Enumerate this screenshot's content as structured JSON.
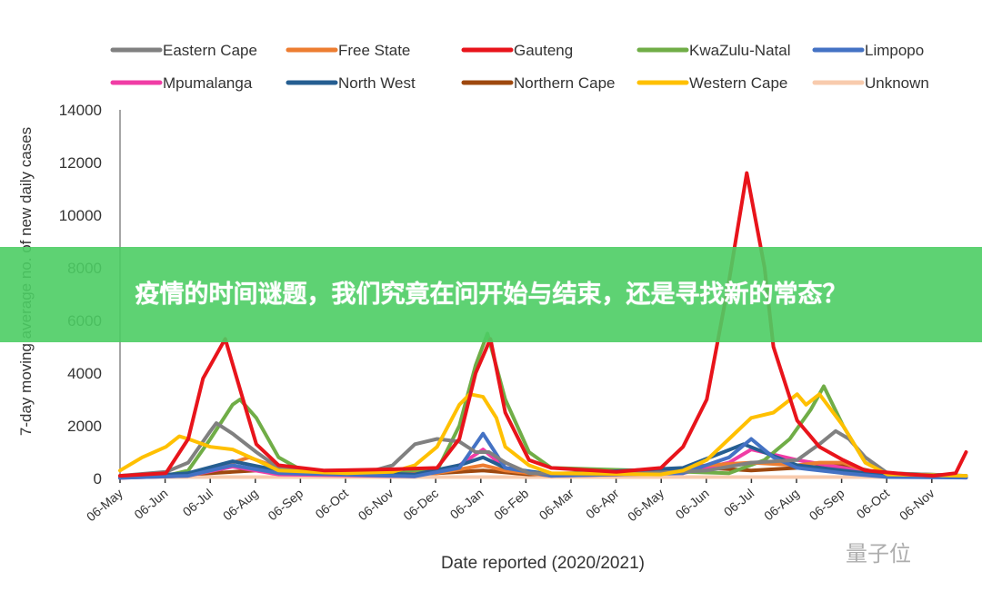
{
  "banner": {
    "title": "疫情的时间谜题，我们究竟在问开始与结束，还是寻找新的常态？"
  },
  "watermark": "量子位",
  "chart_data": {
    "type": "line",
    "title": "",
    "xlabel": "Date reported (2020/2021)",
    "ylabel": "7-day moving average no. of new daily cases",
    "ylim": [
      0,
      14000
    ],
    "yticks": [
      0,
      2000,
      4000,
      6000,
      8000,
      10000,
      12000,
      14000
    ],
    "xticks": [
      "06-May",
      "06-Jun",
      "06-Jul",
      "06-Aug",
      "06-Sep",
      "06-Oct",
      "06-Nov",
      "06-Dec",
      "06-Jan",
      "06-Feb",
      "06-Mar",
      "06-Apr",
      "06-May",
      "06-Jun",
      "06-Jul",
      "06-Aug",
      "06-Sep",
      "06-Oct",
      "06-Nov"
    ],
    "xrange": [
      "2020-05-06",
      "2021-11-28"
    ],
    "grid": false,
    "legend_placement": "top",
    "series": [
      {
        "name": "Eastern Cape",
        "color": "#808080",
        "points": [
          [
            "2020-05-06",
            100
          ],
          [
            "2020-06-06",
            250
          ],
          [
            "2020-06-21",
            600
          ],
          [
            "2020-07-06",
            1800
          ],
          [
            "2020-07-10",
            2100
          ],
          [
            "2020-07-21",
            1700
          ],
          [
            "2020-08-06",
            1000
          ],
          [
            "2020-08-21",
            400
          ],
          [
            "2020-09-21",
            200
          ],
          [
            "2020-10-21",
            250
          ],
          [
            "2020-11-06",
            500
          ],
          [
            "2020-11-21",
            1300
          ],
          [
            "2020-12-06",
            1500
          ],
          [
            "2020-12-21",
            1400
          ],
          [
            "2021-01-01",
            1000
          ],
          [
            "2021-01-10",
            1000
          ],
          [
            "2021-01-21",
            600
          ],
          [
            "2021-02-06",
            200
          ],
          [
            "2021-04-06",
            150
          ],
          [
            "2021-06-06",
            300
          ],
          [
            "2021-07-06",
            600
          ],
          [
            "2021-08-06",
            700
          ],
          [
            "2021-08-21",
            1300
          ],
          [
            "2021-09-01",
            1800
          ],
          [
            "2021-09-10",
            1500
          ],
          [
            "2021-09-21",
            800
          ],
          [
            "2021-10-06",
            200
          ],
          [
            "2021-11-28",
            100
          ]
        ]
      },
      {
        "name": "Free State",
        "color": "#ED7D31",
        "points": [
          [
            "2020-05-06",
            30
          ],
          [
            "2020-06-21",
            100
          ],
          [
            "2020-07-06",
            300
          ],
          [
            "2020-07-21",
            600
          ],
          [
            "2020-08-01",
            800
          ],
          [
            "2020-08-21",
            400
          ],
          [
            "2020-09-06",
            200
          ],
          [
            "2020-11-06",
            150
          ],
          [
            "2020-12-06",
            200
          ],
          [
            "2021-01-06",
            500
          ],
          [
            "2021-01-21",
            300
          ],
          [
            "2021-02-21",
            100
          ],
          [
            "2021-05-06",
            300
          ],
          [
            "2021-06-06",
            500
          ],
          [
            "2021-07-06",
            600
          ],
          [
            "2021-08-06",
            500
          ],
          [
            "2021-08-21",
            600
          ],
          [
            "2021-09-06",
            600
          ],
          [
            "2021-09-21",
            300
          ],
          [
            "2021-10-21",
            80
          ],
          [
            "2021-11-28",
            50
          ]
        ]
      },
      {
        "name": "Gauteng",
        "color": "#E8141B",
        "points": [
          [
            "2020-05-06",
            100
          ],
          [
            "2020-06-06",
            200
          ],
          [
            "2020-06-21",
            1500
          ],
          [
            "2020-07-01",
            3800
          ],
          [
            "2020-07-16",
            5300
          ],
          [
            "2020-07-28",
            3000
          ],
          [
            "2020-08-06",
            1300
          ],
          [
            "2020-08-21",
            500
          ],
          [
            "2020-09-21",
            300
          ],
          [
            "2020-11-06",
            350
          ],
          [
            "2020-12-06",
            400
          ],
          [
            "2020-12-21",
            1500
          ],
          [
            "2021-01-01",
            4000
          ],
          [
            "2021-01-11",
            5300
          ],
          [
            "2021-01-21",
            2500
          ],
          [
            "2021-02-06",
            700
          ],
          [
            "2021-02-21",
            400
          ],
          [
            "2021-04-06",
            250
          ],
          [
            "2021-05-06",
            400
          ],
          [
            "2021-05-21",
            1200
          ],
          [
            "2021-06-06",
            3000
          ],
          [
            "2021-06-21",
            7500
          ],
          [
            "2021-07-03",
            11600
          ],
          [
            "2021-07-15",
            8000
          ],
          [
            "2021-07-21",
            5000
          ],
          [
            "2021-08-06",
            2200
          ],
          [
            "2021-08-21",
            1200
          ],
          [
            "2021-09-06",
            700
          ],
          [
            "2021-09-21",
            300
          ],
          [
            "2021-10-21",
            150
          ],
          [
            "2021-11-06",
            100
          ],
          [
            "2021-11-21",
            200
          ],
          [
            "2021-11-28",
            1000
          ]
        ]
      },
      {
        "name": "KwaZulu-Natal",
        "color": "#70AD47",
        "points": [
          [
            "2020-05-06",
            50
          ],
          [
            "2020-06-06",
            100
          ],
          [
            "2020-06-21",
            300
          ],
          [
            "2020-07-06",
            1500
          ],
          [
            "2020-07-21",
            2800
          ],
          [
            "2020-07-26",
            3000
          ],
          [
            "2020-08-06",
            2300
          ],
          [
            "2020-08-21",
            800
          ],
          [
            "2020-09-06",
            300
          ],
          [
            "2020-11-06",
            200
          ],
          [
            "2020-12-06",
            300
          ],
          [
            "2020-12-21",
            2000
          ],
          [
            "2021-01-01",
            4300
          ],
          [
            "2021-01-09",
            5500
          ],
          [
            "2021-01-21",
            3000
          ],
          [
            "2021-02-06",
            1000
          ],
          [
            "2021-02-21",
            400
          ],
          [
            "2021-06-21",
            200
          ],
          [
            "2021-07-15",
            700
          ],
          [
            "2021-08-01",
            1500
          ],
          [
            "2021-08-15",
            2600
          ],
          [
            "2021-08-24",
            3500
          ],
          [
            "2021-09-06",
            2000
          ],
          [
            "2021-09-21",
            600
          ],
          [
            "2021-10-06",
            200
          ],
          [
            "2021-11-28",
            100
          ]
        ]
      },
      {
        "name": "Limpopo",
        "color": "#4472C4",
        "points": [
          [
            "2020-05-06",
            20
          ],
          [
            "2020-06-21",
            100
          ],
          [
            "2020-07-21",
            500
          ],
          [
            "2020-08-21",
            200
          ],
          [
            "2020-11-21",
            80
          ],
          [
            "2020-12-21",
            400
          ],
          [
            "2021-01-06",
            1700
          ],
          [
            "2021-01-21",
            400
          ],
          [
            "2021-02-21",
            100
          ],
          [
            "2021-05-21",
            200
          ],
          [
            "2021-06-21",
            800
          ],
          [
            "2021-07-06",
            1500
          ],
          [
            "2021-07-21",
            800
          ],
          [
            "2021-08-06",
            400
          ],
          [
            "2021-09-06",
            200
          ],
          [
            "2021-10-06",
            50
          ],
          [
            "2021-11-28",
            30
          ]
        ]
      },
      {
        "name": "Mpumalanga",
        "color": "#F03DA5",
        "points": [
          [
            "2020-05-06",
            20
          ],
          [
            "2020-06-21",
            100
          ],
          [
            "2020-07-21",
            450
          ],
          [
            "2020-08-21",
            150
          ],
          [
            "2020-11-21",
            80
          ],
          [
            "2020-12-21",
            500
          ],
          [
            "2021-01-06",
            1100
          ],
          [
            "2021-01-21",
            400
          ],
          [
            "2021-02-21",
            100
          ],
          [
            "2021-05-21",
            200
          ],
          [
            "2021-06-21",
            600
          ],
          [
            "2021-07-06",
            1100
          ],
          [
            "2021-08-06",
            700
          ],
          [
            "2021-09-06",
            400
          ],
          [
            "2021-10-06",
            100
          ],
          [
            "2021-11-28",
            30
          ]
        ]
      },
      {
        "name": "North West",
        "color": "#255E91",
        "points": [
          [
            "2020-05-06",
            30
          ],
          [
            "2020-06-21",
            200
          ],
          [
            "2020-07-21",
            650
          ],
          [
            "2020-08-21",
            300
          ],
          [
            "2020-11-21",
            150
          ],
          [
            "2020-12-21",
            500
          ],
          [
            "2021-01-06",
            800
          ],
          [
            "2021-01-21",
            400
          ],
          [
            "2021-02-21",
            150
          ],
          [
            "2021-05-21",
            400
          ],
          [
            "2021-07-01",
            1300
          ],
          [
            "2021-08-06",
            500
          ],
          [
            "2021-09-06",
            300
          ],
          [
            "2021-10-06",
            100
          ],
          [
            "2021-11-28",
            50
          ]
        ]
      },
      {
        "name": "Northern Cape",
        "color": "#9E480E",
        "points": [
          [
            "2020-05-06",
            20
          ],
          [
            "2020-07-06",
            200
          ],
          [
            "2020-08-06",
            300
          ],
          [
            "2020-09-06",
            150
          ],
          [
            "2020-12-06",
            200
          ],
          [
            "2021-01-06",
            300
          ],
          [
            "2021-02-06",
            150
          ],
          [
            "2021-05-06",
            300
          ],
          [
            "2021-06-06",
            400
          ],
          [
            "2021-07-06",
            300
          ],
          [
            "2021-08-06",
            400
          ],
          [
            "2021-09-06",
            500
          ],
          [
            "2021-10-06",
            150
          ],
          [
            "2021-11-28",
            50
          ]
        ]
      },
      {
        "name": "Western Cape",
        "color": "#FFC000",
        "points": [
          [
            "2020-05-06",
            300
          ],
          [
            "2020-05-21",
            800
          ],
          [
            "2020-06-06",
            1200
          ],
          [
            "2020-06-15",
            1600
          ],
          [
            "2020-06-21",
            1500
          ],
          [
            "2020-07-06",
            1200
          ],
          [
            "2020-07-21",
            1100
          ],
          [
            "2020-08-06",
            700
          ],
          [
            "2020-08-21",
            300
          ],
          [
            "2020-10-06",
            200
          ],
          [
            "2020-11-06",
            250
          ],
          [
            "2020-11-21",
            500
          ],
          [
            "2020-12-06",
            1200
          ],
          [
            "2020-12-21",
            2800
          ],
          [
            "2020-12-28",
            3200
          ],
          [
            "2021-01-06",
            3100
          ],
          [
            "2021-01-15",
            2300
          ],
          [
            "2021-01-21",
            1200
          ],
          [
            "2021-02-06",
            500
          ],
          [
            "2021-02-21",
            200
          ],
          [
            "2021-05-06",
            150
          ],
          [
            "2021-05-21",
            300
          ],
          [
            "2021-06-06",
            700
          ],
          [
            "2021-06-21",
            1500
          ],
          [
            "2021-07-06",
            2300
          ],
          [
            "2021-07-21",
            2500
          ],
          [
            "2021-08-06",
            3200
          ],
          [
            "2021-08-12",
            2800
          ],
          [
            "2021-08-21",
            3200
          ],
          [
            "2021-09-06",
            2000
          ],
          [
            "2021-09-21",
            600
          ],
          [
            "2021-10-06",
            150
          ],
          [
            "2021-11-28",
            100
          ]
        ]
      },
      {
        "name": "Unknown",
        "color": "#F8CBAD",
        "points": [
          [
            "2020-05-06",
            50
          ],
          [
            "2021-11-28",
            50
          ]
        ]
      }
    ]
  }
}
